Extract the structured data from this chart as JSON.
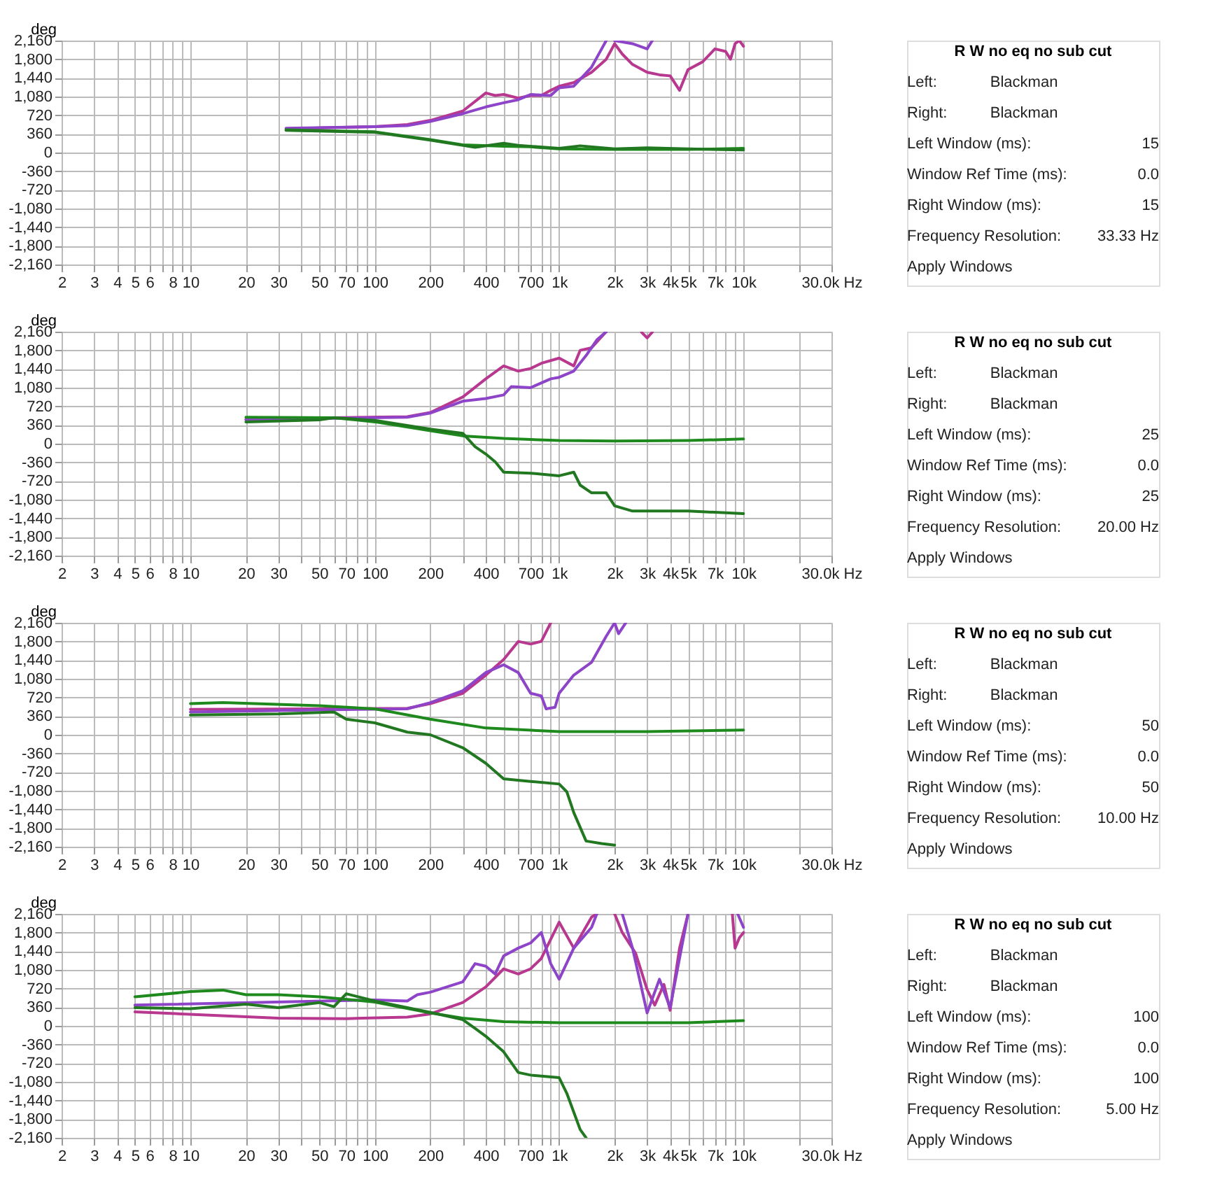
{
  "chart_data": [
    {
      "type": "line",
      "ylabel": "deg",
      "xlim": [
        2,
        30000
      ],
      "ylim": [
        -2160,
        2160
      ],
      "log": "x",
      "grid": true,
      "legend": false,
      "line_style": "solid",
      "marker": "none",
      "xticks": [
        2,
        3,
        4,
        5,
        6,
        {
          "value": 7,
          "label": null
        },
        8,
        {
          "value": 9,
          "label": null
        },
        10,
        20,
        30,
        {
          "value": 40,
          "label": null
        },
        50,
        {
          "value": 60,
          "label": null
        },
        70,
        {
          "value": 80,
          "label": null
        },
        {
          "value": 90,
          "label": null
        },
        100,
        200,
        {
          "value": 300,
          "label": null
        },
        400,
        {
          "value": 500,
          "label": null
        },
        {
          "value": 600,
          "label": null
        },
        700,
        {
          "value": 800,
          "label": null
        },
        {
          "value": 900,
          "label": null
        },
        {
          "value": 1000,
          "label": "1k"
        },
        {
          "value": 2000,
          "label": "2k"
        },
        {
          "value": 3000,
          "label": "3k"
        },
        {
          "value": 4000,
          "label": "4k"
        },
        {
          "value": 5000,
          "label": "5k"
        },
        {
          "value": 6000,
          "label": null
        },
        {
          "value": 7000,
          "label": "7k"
        },
        {
          "value": 8000,
          "label": null
        },
        {
          "value": 9000,
          "label": null
        },
        {
          "value": 10000,
          "label": "10k"
        },
        {
          "value": 20000,
          "label": null
        },
        {
          "value": 30000,
          "label": "30.0k Hz"
        }
      ],
      "yticks": [
        {
          "value": 2160,
          "label": "2,160"
        },
        {
          "value": 1800,
          "label": "1,800"
        },
        {
          "value": 1440,
          "label": "1,440"
        },
        {
          "value": 1080,
          "label": "1,080"
        },
        720,
        360,
        0,
        -360,
        -720,
        {
          "value": -1080,
          "label": "-1,080"
        },
        {
          "value": -1440,
          "label": "-1,440"
        },
        {
          "value": -1800,
          "label": "-1,800"
        },
        {
          "value": -2160,
          "label": "-2,160"
        }
      ],
      "series": [
        {
          "color": "#b8388f",
          "x": [
            33,
            100,
            150,
            200,
            300,
            400,
            450,
            500,
            600,
            700,
            800,
            900,
            1000,
            1200,
            1500,
            1800,
            2000,
            2200,
            2500,
            3000,
            3500,
            4000,
            4500,
            5000,
            6000,
            7000,
            8000,
            8500,
            9000,
            9500,
            10000
          ],
          "values": [
            460,
            500,
            540,
            620,
            800,
            1150,
            1100,
            1120,
            1050,
            1100,
            1100,
            1200,
            1280,
            1350,
            1550,
            1800,
            2100,
            1900,
            1700,
            1550,
            1500,
            1480,
            1200,
            1600,
            1750,
            2000,
            1950,
            1800,
            2100,
            2160,
            2050
          ]
        },
        {
          "color": "#8e44c8",
          "x": [
            33,
            100,
            150,
            200,
            300,
            400,
            500,
            600,
            700,
            900,
            1000,
            1200,
            1500,
            1700,
            1800,
            1900,
            2000,
            2500,
            3000,
            3200
          ],
          "values": [
            470,
            500,
            520,
            600,
            750,
            880,
            960,
            1020,
            1120,
            1100,
            1250,
            1280,
            1650,
            2000,
            2160,
            null,
            2160,
            2100,
            2000,
            2160
          ]
        },
        {
          "color": "#1e8a1e",
          "x": [
            33,
            100,
            200,
            300,
            500,
            700,
            1000,
            2000,
            5000,
            10000
          ],
          "values": [
            440,
            400,
            250,
            150,
            120,
            110,
            70,
            60,
            60,
            80
          ]
        },
        {
          "color": "#217821",
          "x": [
            33,
            100,
            200,
            350,
            500,
            600,
            1000,
            1300,
            2000,
            3000,
            5000,
            10000
          ],
          "values": [
            430,
            390,
            240,
            100,
            180,
            140,
            80,
            130,
            70,
            90,
            70,
            50
          ]
        }
      ]
    },
    {
      "type": "other",
      "title": "R W no eq no sub cut",
      "annotations": [
        "Left:",
        "Blackman",
        "Right:",
        "Blackman",
        "Left Window (ms):",
        "15",
        "Window Ref Time (ms):",
        "0.0",
        "Right Window (ms):",
        "15",
        "Frequency Resolution:",
        "33.33 Hz",
        "Apply Windows"
      ]
    },
    {
      "type": "line",
      "ylabel": "deg",
      "xlim": [
        2,
        30000
      ],
      "ylim": [
        -2160,
        2160
      ],
      "log": "x",
      "grid": true,
      "legend": false,
      "line_style": "solid",
      "marker": "none",
      "xticks": [
        2,
        3,
        4,
        5,
        6,
        {
          "value": 7,
          "label": null
        },
        8,
        {
          "value": 9,
          "label": null
        },
        10,
        20,
        30,
        {
          "value": 40,
          "label": null
        },
        50,
        {
          "value": 60,
          "label": null
        },
        70,
        {
          "value": 80,
          "label": null
        },
        {
          "value": 90,
          "label": null
        },
        100,
        200,
        {
          "value": 300,
          "label": null
        },
        400,
        {
          "value": 500,
          "label": null
        },
        {
          "value": 600,
          "label": null
        },
        700,
        {
          "value": 800,
          "label": null
        },
        {
          "value": 900,
          "label": null
        },
        {
          "value": 1000,
          "label": "1k"
        },
        {
          "value": 2000,
          "label": "2k"
        },
        {
          "value": 3000,
          "label": "3k"
        },
        {
          "value": 4000,
          "label": "4k"
        },
        {
          "value": 5000,
          "label": "5k"
        },
        {
          "value": 6000,
          "label": null
        },
        {
          "value": 7000,
          "label": "7k"
        },
        {
          "value": 8000,
          "label": null
        },
        {
          "value": 9000,
          "label": null
        },
        {
          "value": 10000,
          "label": "10k"
        },
        {
          "value": 20000,
          "label": null
        },
        {
          "value": 30000,
          "label": "30.0k Hz"
        }
      ],
      "yticks": [
        {
          "value": 2160,
          "label": "2,160"
        },
        {
          "value": 1800,
          "label": "1,800"
        },
        {
          "value": 1440,
          "label": "1,440"
        },
        {
          "value": 1080,
          "label": "1,080"
        },
        720,
        360,
        0,
        -360,
        -720,
        {
          "value": -1080,
          "label": "-1,080"
        },
        {
          "value": -1440,
          "label": "-1,440"
        },
        {
          "value": -1800,
          "label": "-1,800"
        },
        {
          "value": -2160,
          "label": "-2,160"
        }
      ],
      "series": [
        {
          "color": "#b8388f",
          "x": [
            20,
            60,
            150,
            200,
            300,
            400,
            500,
            600,
            700,
            800,
            1000,
            1200,
            1300,
            1500,
            1800,
            2400,
            2800,
            3000,
            3200
          ],
          "values": [
            470,
            500,
            520,
            600,
            900,
            1250,
            1500,
            1400,
            1450,
            1550,
            1650,
            1500,
            1800,
            1850,
            2160,
            null,
            2150,
            2040,
            2150
          ]
        },
        {
          "color": "#8e44c8",
          "x": [
            20,
            60,
            150,
            200,
            300,
            400,
            500,
            550,
            700,
            900,
            1000,
            1200,
            1400,
            1600,
            1800
          ],
          "values": [
            460,
            490,
            510,
            590,
            820,
            870,
            940,
            1100,
            1080,
            1250,
            1280,
            1400,
            1700,
            2000,
            2160
          ]
        },
        {
          "color": "#1e8a1e",
          "x": [
            20,
            60,
            100,
            200,
            300,
            500,
            1000,
            2000,
            5000,
            10000
          ],
          "values": [
            510,
            500,
            420,
            250,
            150,
            100,
            60,
            50,
            60,
            90
          ]
        },
        {
          "color": "#217821",
          "x": [
            20,
            50,
            60,
            100,
            200,
            300,
            350,
            400,
            450,
            500,
            700,
            1000,
            1200,
            1300,
            1500,
            1800,
            2000,
            2500,
            5000,
            10000
          ],
          "values": [
            420,
            460,
            500,
            450,
            280,
            200,
            -60,
            -200,
            -350,
            -550,
            -570,
            -620,
            -550,
            -800,
            -950,
            -950,
            -1200,
            -1300,
            -1300,
            -1350
          ]
        }
      ]
    },
    {
      "type": "other",
      "title": "R W no eq no sub cut",
      "annotations": [
        "Left:",
        "Blackman",
        "Right:",
        "Blackman",
        "Left Window (ms):",
        "25",
        "Window Ref Time (ms):",
        "0.0",
        "Right Window (ms):",
        "25",
        "Frequency Resolution:",
        "20.00 Hz",
        "Apply Windows"
      ]
    },
    {
      "type": "line",
      "ylabel": "deg",
      "xlim": [
        2,
        30000
      ],
      "ylim": [
        -2160,
        2160
      ],
      "log": "x",
      "grid": true,
      "legend": false,
      "line_style": "solid",
      "marker": "none",
      "xticks": [
        2,
        3,
        4,
        5,
        6,
        {
          "value": 7,
          "label": null
        },
        8,
        {
          "value": 9,
          "label": null
        },
        10,
        20,
        30,
        {
          "value": 40,
          "label": null
        },
        50,
        {
          "value": 60,
          "label": null
        },
        70,
        {
          "value": 80,
          "label": null
        },
        {
          "value": 90,
          "label": null
        },
        100,
        200,
        {
          "value": 300,
          "label": null
        },
        400,
        {
          "value": 500,
          "label": null
        },
        {
          "value": 600,
          "label": null
        },
        700,
        {
          "value": 800,
          "label": null
        },
        {
          "value": 900,
          "label": null
        },
        {
          "value": 1000,
          "label": "1k"
        },
        {
          "value": 2000,
          "label": "2k"
        },
        {
          "value": 3000,
          "label": "3k"
        },
        {
          "value": 4000,
          "label": "4k"
        },
        {
          "value": 5000,
          "label": "5k"
        },
        {
          "value": 6000,
          "label": null
        },
        {
          "value": 7000,
          "label": "7k"
        },
        {
          "value": 8000,
          "label": null
        },
        {
          "value": 9000,
          "label": null
        },
        {
          "value": 10000,
          "label": "10k"
        },
        {
          "value": 20000,
          "label": null
        },
        {
          "value": 30000,
          "label": "30.0k Hz"
        }
      ],
      "yticks": [
        {
          "value": 2160,
          "label": "2,160"
        },
        {
          "value": 1800,
          "label": "1,800"
        },
        {
          "value": 1440,
          "label": "1,440"
        },
        {
          "value": 1080,
          "label": "1,080"
        },
        720,
        360,
        0,
        -360,
        -720,
        {
          "value": -1080,
          "label": "-1,080"
        },
        {
          "value": -1440,
          "label": "-1,440"
        },
        {
          "value": -1800,
          "label": "-1,800"
        },
        {
          "value": -2160,
          "label": "-2,160"
        }
      ],
      "series": [
        {
          "color": "#b8388f",
          "x": [
            10,
            50,
            150,
            200,
            300,
            400,
            500,
            600,
            700,
            800,
            900
          ],
          "values": [
            490,
            500,
            510,
            600,
            800,
            1150,
            1450,
            1800,
            1750,
            1800,
            2160
          ]
        },
        {
          "color": "#8e44c8",
          "x": [
            10,
            50,
            150,
            200,
            300,
            400,
            500,
            600,
            700,
            800,
            850,
            950,
            1000,
            1200,
            1500,
            1800,
            2000,
            2100,
            2300
          ],
          "values": [
            440,
            480,
            500,
            620,
            850,
            1200,
            1350,
            1200,
            800,
            750,
            500,
            530,
            800,
            1150,
            1400,
            1900,
            2160,
            1950,
            2160
          ]
        },
        {
          "color": "#1e8a1e",
          "x": [
            10,
            15,
            50,
            100,
            200,
            400,
            1000,
            3000,
            10000
          ],
          "values": [
            600,
            620,
            560,
            500,
            300,
            130,
            60,
            60,
            90
          ]
        },
        {
          "color": "#217821",
          "x": [
            10,
            30,
            60,
            70,
            100,
            150,
            200,
            300,
            400,
            500,
            700,
            1000,
            1100,
            1200,
            1400,
            1700,
            2000
          ],
          "values": [
            380,
            400,
            440,
            300,
            230,
            50,
            0,
            -250,
            -550,
            -850,
            -900,
            -950,
            -1100,
            -1500,
            -2050,
            -2100,
            -2130
          ]
        }
      ]
    },
    {
      "type": "other",
      "title": "R W no eq no sub cut",
      "annotations": [
        "Left:",
        "Blackman",
        "Right:",
        "Blackman",
        "Left Window (ms):",
        "50",
        "Window Ref Time (ms):",
        "0.0",
        "Right Window (ms):",
        "50",
        "Frequency Resolution:",
        "10.00 Hz",
        "Apply Windows"
      ]
    },
    {
      "type": "line",
      "ylabel": "deg",
      "xlim": [
        2,
        30000
      ],
      "ylim": [
        -2160,
        2160
      ],
      "log": "x",
      "grid": true,
      "legend": false,
      "line_style": "solid",
      "marker": "none",
      "xticks": [
        2,
        3,
        4,
        5,
        6,
        {
          "value": 7,
          "label": null
        },
        8,
        {
          "value": 9,
          "label": null
        },
        10,
        20,
        30,
        {
          "value": 40,
          "label": null
        },
        50,
        {
          "value": 60,
          "label": null
        },
        70,
        {
          "value": 80,
          "label": null
        },
        {
          "value": 90,
          "label": null
        },
        100,
        200,
        {
          "value": 300,
          "label": null
        },
        400,
        {
          "value": 500,
          "label": null
        },
        {
          "value": 600,
          "label": null
        },
        700,
        {
          "value": 800,
          "label": null
        },
        {
          "value": 900,
          "label": null
        },
        {
          "value": 1000,
          "label": "1k"
        },
        {
          "value": 2000,
          "label": "2k"
        },
        {
          "value": 3000,
          "label": "3k"
        },
        {
          "value": 4000,
          "label": "4k"
        },
        {
          "value": 5000,
          "label": "5k"
        },
        {
          "value": 6000,
          "label": null
        },
        {
          "value": 7000,
          "label": "7k"
        },
        {
          "value": 8000,
          "label": null
        },
        {
          "value": 9000,
          "label": null
        },
        {
          "value": 10000,
          "label": "10k"
        },
        {
          "value": 20000,
          "label": null
        },
        {
          "value": 30000,
          "label": "30.0k Hz"
        }
      ],
      "yticks": [
        {
          "value": 2160,
          "label": "2,160"
        },
        {
          "value": 1800,
          "label": "1,800"
        },
        {
          "value": 1440,
          "label": "1,440"
        },
        {
          "value": 1080,
          "label": "1,080"
        },
        720,
        360,
        0,
        -360,
        -720,
        {
          "value": -1080,
          "label": "-1,080"
        },
        {
          "value": -1440,
          "label": "-1,440"
        },
        {
          "value": -1800,
          "label": "-1,800"
        },
        {
          "value": -2160,
          "label": "-2,160"
        }
      ],
      "series": [
        {
          "color": "#b8388f",
          "x": [
            5,
            30,
            70,
            150,
            200,
            300,
            400,
            500,
            600,
            700,
            800,
            1000,
            1200,
            1500,
            1600,
            1800,
            2000,
            2200,
            2600,
            3000,
            3300,
            3700,
            4000,
            4500,
            5000,
            7000,
            8700,
            9000,
            9500,
            10000
          ],
          "values": [
            270,
            150,
            140,
            170,
            230,
            450,
            750,
            1100,
            1000,
            1100,
            1300,
            2000,
            1500,
            2100,
            2160,
            null,
            2160,
            1800,
            1400,
            700,
            400,
            800,
            300,
            1500,
            2160,
            null,
            2160,
            1500,
            1700,
            1800
          ]
        },
        {
          "color": "#8e44c8",
          "x": [
            5,
            100,
            150,
            170,
            200,
            300,
            350,
            400,
            450,
            500,
            600,
            700,
            800,
            900,
            1000,
            1200,
            1500,
            1600,
            1900,
            2200,
            2500,
            3000,
            3500,
            4000,
            5000,
            7000,
            9300,
            10000
          ],
          "values": [
            400,
            500,
            480,
            600,
            650,
            850,
            1200,
            1150,
            1000,
            1350,
            1500,
            1600,
            1800,
            1200,
            900,
            1500,
            1900,
            2160,
            null,
            2160,
            1500,
            250,
            900,
            350,
            2160,
            null,
            2160,
            1900
          ]
        },
        {
          "color": "#1e8a1e",
          "x": [
            5,
            10,
            15,
            20,
            30,
            50,
            100,
            200,
            300,
            500,
            1000,
            5000,
            10000
          ],
          "values": [
            560,
            660,
            690,
            600,
            600,
            560,
            460,
            250,
            150,
            80,
            60,
            60,
            100
          ]
        },
        {
          "color": "#217821",
          "x": [
            5,
            10,
            20,
            30,
            50,
            60,
            70,
            100,
            200,
            300,
            350,
            400,
            500,
            600,
            700,
            1000,
            1100,
            1300,
            1400
          ],
          "values": [
            350,
            330,
            420,
            350,
            450,
            370,
            620,
            480,
            260,
            120,
            -50,
            -200,
            -500,
            -900,
            -950,
            -1000,
            -1300,
            -2000,
            -2160
          ]
        }
      ]
    },
    {
      "type": "other",
      "title": "R W no eq no sub cut",
      "annotations": [
        "Left:",
        "Blackman",
        "Right:",
        "Blackman",
        "Left Window (ms):",
        "100",
        "Window Ref Time (ms):",
        "0.0",
        "Right Window (ms):",
        "100",
        "Frequency Resolution:",
        "5.00 Hz",
        "Apply Windows"
      ]
    }
  ]
}
